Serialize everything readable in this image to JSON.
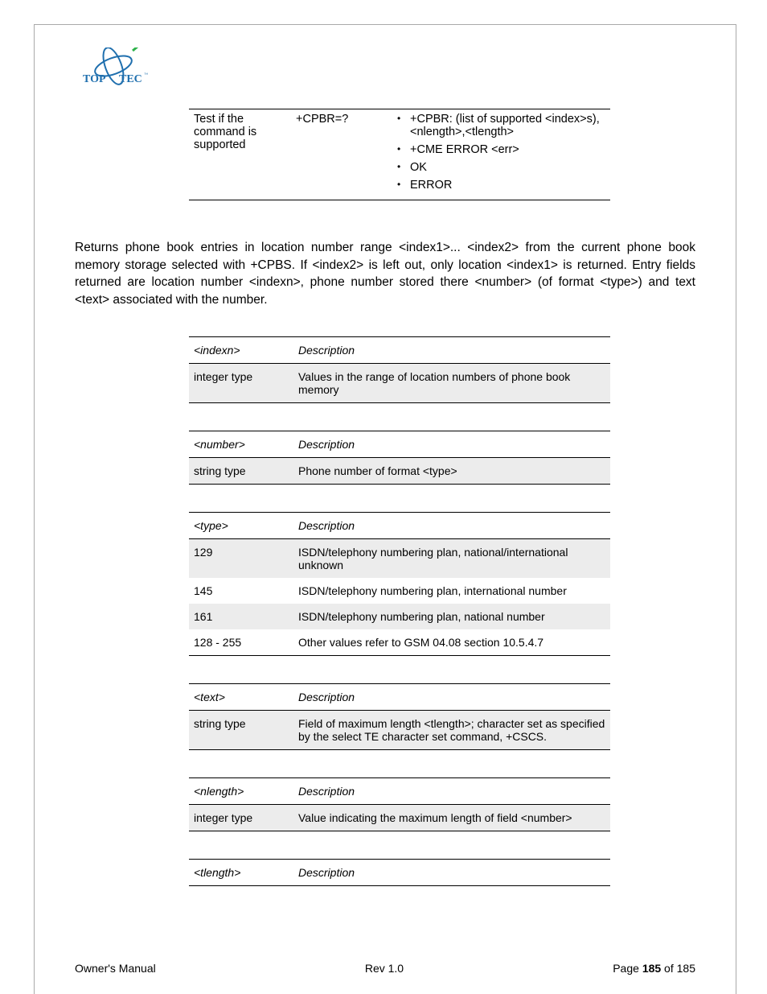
{
  "logo": {
    "left_text": "TOP",
    "right_text": "TEC",
    "text_color": "#1f6fae",
    "swirl_color": "#1f6fae",
    "accent_color": "#2eb24a"
  },
  "cmd_table": {
    "row": {
      "label": "Test if the command is supported",
      "command": "+CPBR=?",
      "responses": [
        "+CPBR: (list of supported <index>s),<nlength>,<tlength>",
        "+CME ERROR <err>",
        "OK",
        "ERROR"
      ]
    }
  },
  "paragraph": "Returns phone book entries in location number range <index1>... <index2> from the current phone book memory storage selected with +CPBS. If <index2> is left out, only location <index1> is returned. Entry fields returned are location number <indexn>, phone number stored there <number> (of format <type>) and text <text> associated with the number.",
  "tables": [
    {
      "param": "<indexn>",
      "header": "Description",
      "rows": [
        {
          "c1": "integer type",
          "c2": "Values in the range of location numbers of phone book memory",
          "shaded": true
        }
      ]
    },
    {
      "param": "<number>",
      "header": "Description",
      "rows": [
        {
          "c1": "string type",
          "c2": "Phone number of format <type>",
          "shaded": true
        }
      ]
    },
    {
      "param": "<type>",
      "header": "Description",
      "rows": [
        {
          "c1": "129",
          "c2": "ISDN/telephony numbering plan, national/international unknown",
          "shaded": true
        },
        {
          "c1": "145",
          "c2": "ISDN/telephony numbering plan, international number",
          "shaded": false
        },
        {
          "c1": "161",
          "c2": "ISDN/telephony numbering plan, national number",
          "shaded": true
        },
        {
          "c1": "128 - 255",
          "c2": "Other values refer to GSM 04.08 section 10.5.4.7",
          "shaded": false
        }
      ]
    },
    {
      "param": "<text>",
      "header": "Description",
      "rows": [
        {
          "c1": "string type",
          "c2": "Field of maximum length <tlength>;\ncharacter set as specified by the select TE character set command, +CSCS.",
          "shaded": true
        }
      ]
    },
    {
      "param": "<nlength>",
      "header": "Description",
      "rows": [
        {
          "c1": "integer type",
          "c2": "Value indicating the maximum length of field <number>",
          "shaded": true
        }
      ]
    },
    {
      "param": "<tlength>",
      "header": "Description",
      "rows": []
    }
  ],
  "footer": {
    "left": "Owner's Manual",
    "center": "Rev 1.0",
    "right_prefix": "Page ",
    "page_current": "185",
    "right_suffix": " of 185"
  }
}
